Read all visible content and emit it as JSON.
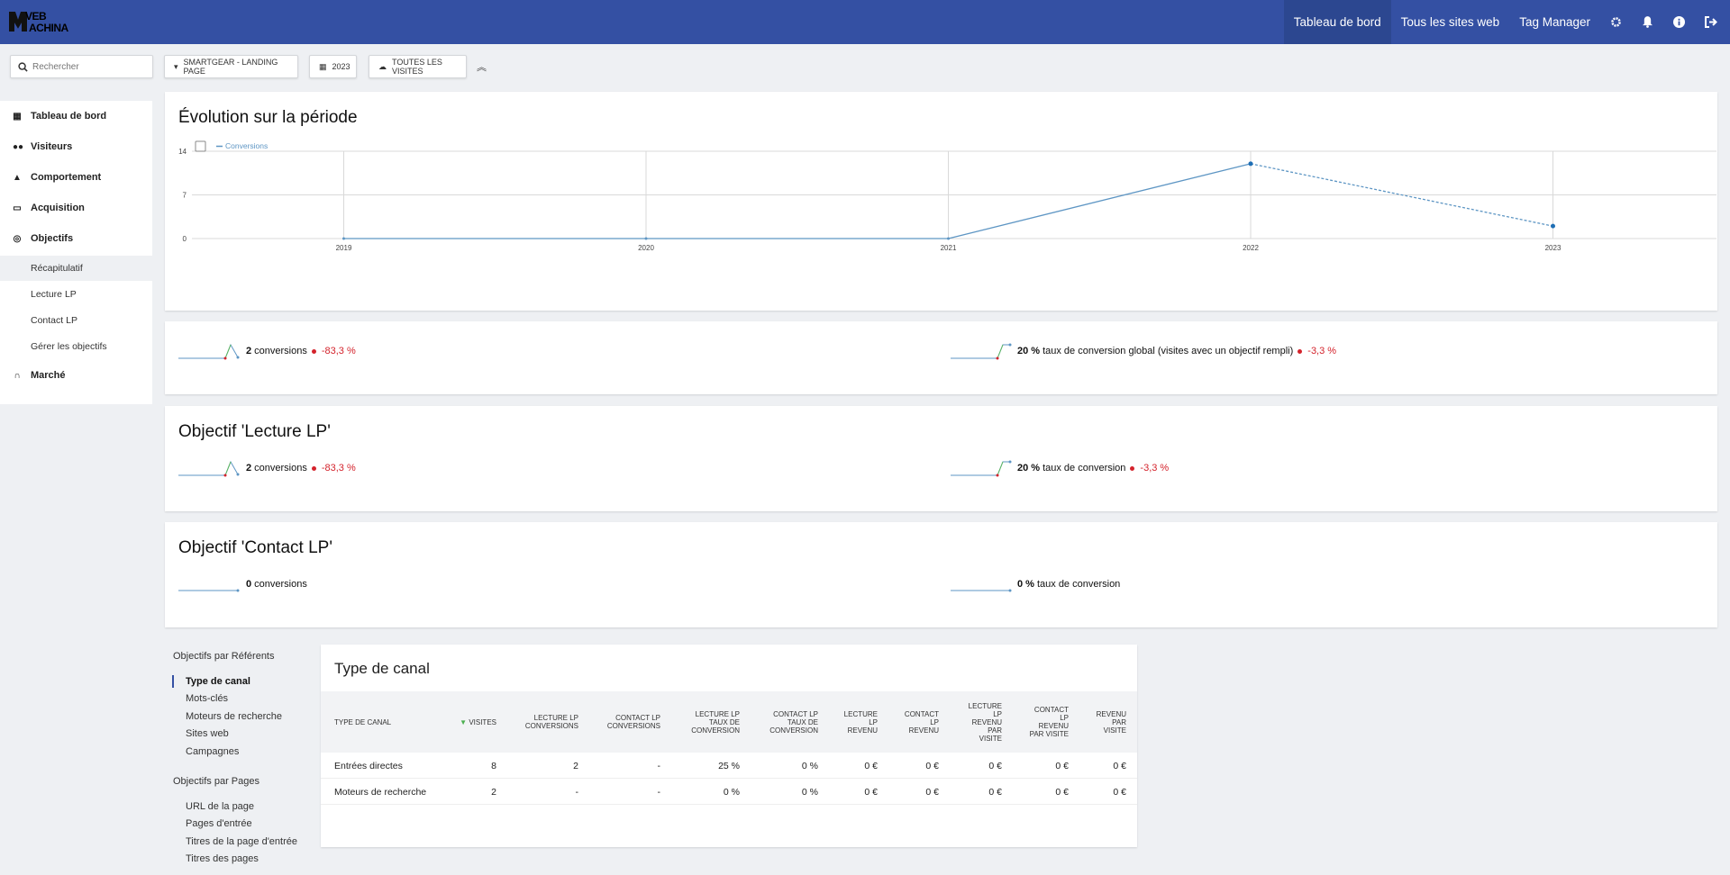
{
  "app": {
    "logo_line1": "VEB",
    "logo_line2": "ACHINA"
  },
  "nav": {
    "dashboard": "Tableau de bord",
    "all_sites": "Tous les sites web",
    "tag_manager": "Tag Manager"
  },
  "filters": {
    "search_placeholder": "Rechercher",
    "site": "SMARTGEAR - LANDING PAGE",
    "period": "2023",
    "segment": "TOUTES LES VISITES"
  },
  "sidebar": {
    "items": [
      {
        "label": "Tableau de bord",
        "icon": "grid-icon"
      },
      {
        "label": "Visiteurs",
        "icon": "binoculars-icon"
      },
      {
        "label": "Comportement",
        "icon": "bell-icon"
      },
      {
        "label": "Acquisition",
        "icon": "window-icon"
      },
      {
        "label": "Objectifs",
        "icon": "target-icon"
      }
    ],
    "sub": [
      "Récapitulatif",
      "Lecture LP",
      "Contact LP",
      "Gérer les objectifs"
    ],
    "last": {
      "label": "Marché",
      "icon": "headset-icon"
    }
  },
  "evolution": {
    "title": "Évolution sur la période"
  },
  "chart_data": {
    "type": "line",
    "title": "Évolution sur la période",
    "x": [
      "2019",
      "2020",
      "2021",
      "2022",
      "2023"
    ],
    "series": [
      {
        "name": "Conversions",
        "values": [
          0,
          0,
          0,
          12,
          2
        ]
      }
    ],
    "yticks": [
      "0",
      "7",
      "14"
    ],
    "ylim": [
      0,
      14
    ],
    "color": "#5e96c4",
    "last_segment_dashed": true,
    "grid": true,
    "legend": "top-left"
  },
  "summary": {
    "conv_value": "2",
    "conv_label": "conversions",
    "conv_change": "-83,3 %",
    "rate_value": "20 %",
    "rate_label": "taux de conversion global (visites avec un objectif rempli)",
    "rate_change": "-3,3 %"
  },
  "goal1": {
    "title": "Objectif 'Lecture LP'",
    "conv_value": "2",
    "conv_label": "conversions",
    "conv_change": "-83,3 %",
    "rate_value": "20 %",
    "rate_label": "taux de conversion",
    "rate_change": "-3,3 %"
  },
  "goal2": {
    "title": "Objectif 'Contact LP'",
    "conv_value": "0",
    "conv_label": "conversions",
    "rate_value": "0 %",
    "rate_label": "taux de conversion"
  },
  "referrers": {
    "heading": "Objectifs par Référents",
    "items": [
      "Type de canal",
      "Mots-clés",
      "Moteurs de recherche",
      "Sites web",
      "Campagnes"
    ]
  },
  "pages": {
    "heading": "Objectifs par Pages",
    "items": [
      "URL de la page",
      "Pages d'entrée",
      "Titres de la page d'entrée",
      "Titres des pages"
    ]
  },
  "table": {
    "title": "Type de canal",
    "columns": [
      [
        "TYPE DE CANAL"
      ],
      [
        "VISITES"
      ],
      [
        "LECTURE LP",
        "CONVERSIONS"
      ],
      [
        "CONTACT LP",
        "CONVERSIONS"
      ],
      [
        "LECTURE LP",
        "TAUX DE",
        "CONVERSION"
      ],
      [
        "CONTACT LP",
        "TAUX DE",
        "CONVERSION"
      ],
      [
        "LECTURE",
        "LP",
        "REVENU"
      ],
      [
        "CONTACT",
        "LP",
        "REVENU"
      ],
      [
        "LECTURE",
        "LP",
        "REVENU",
        "PAR",
        "VISITE"
      ],
      [
        "CONTACT",
        "LP",
        "REVENU",
        "PAR VISITE"
      ],
      [
        "REVENU",
        "PAR",
        "VISITE"
      ]
    ],
    "rows": [
      [
        "Entrées directes",
        "8",
        "2",
        "-",
        "25 %",
        "0 %",
        "0 €",
        "0 €",
        "0 €",
        "0 €",
        "0 €"
      ],
      [
        "Moteurs de recherche",
        "2",
        "-",
        "-",
        "0 %",
        "0 %",
        "0 €",
        "0 €",
        "0 €",
        "0 €",
        "0 €"
      ]
    ]
  }
}
